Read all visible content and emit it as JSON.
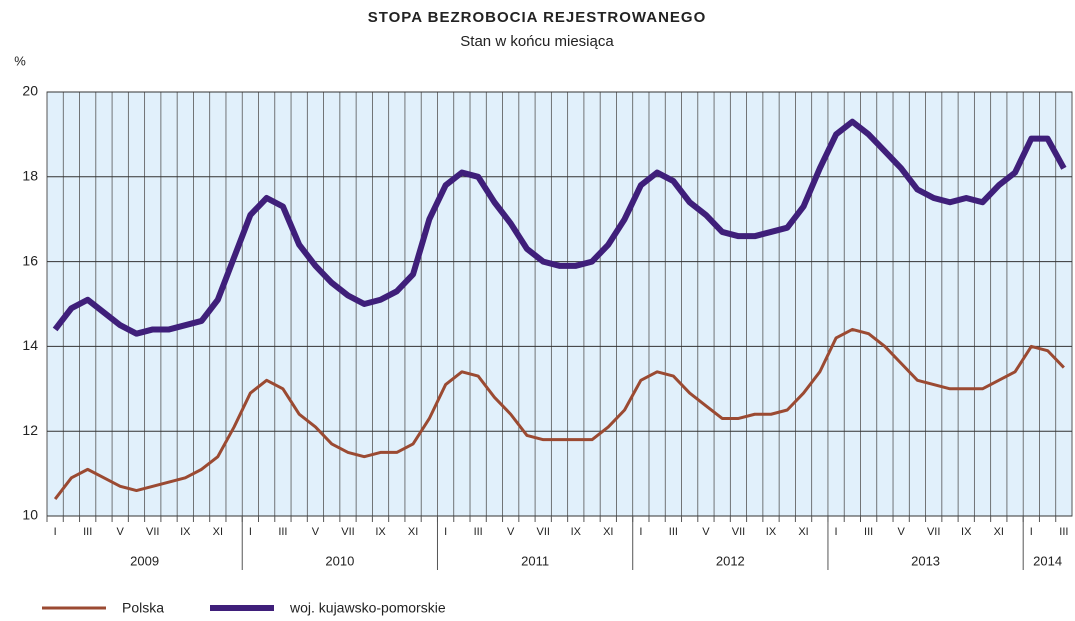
{
  "chart_data": {
    "type": "line",
    "title": "STOPA BEZROBOCIA REJESTROWANEGO",
    "subtitle": "Stan w końcu miesiąca",
    "y_label": "%",
    "categories": [
      "I",
      null,
      "III",
      null,
      "V",
      null,
      "VII",
      null,
      "IX",
      null,
      "XI",
      null,
      "I",
      null,
      "III",
      null,
      "V",
      null,
      "VII",
      null,
      "IX",
      null,
      "XI",
      null,
      "I",
      null,
      "III",
      null,
      "V",
      null,
      "VII",
      null,
      "IX",
      null,
      "XI",
      null,
      "I",
      null,
      "III",
      null,
      "V",
      null,
      "VII",
      null,
      "IX",
      null,
      "XI",
      null,
      "I",
      null,
      "III",
      null,
      "V",
      null,
      "VII",
      null,
      "IX",
      null,
      "XI",
      null,
      "I",
      null,
      "III"
    ],
    "groups": [
      {
        "name": "2009",
        "size": 12
      },
      {
        "name": "2010",
        "size": 12
      },
      {
        "name": "2011",
        "size": 12
      },
      {
        "name": "2012",
        "size": 12
      },
      {
        "name": "2013",
        "size": 12
      },
      {
        "name": "2014",
        "size": 3
      }
    ],
    "series": [
      {
        "name": "Polska",
        "color": "#9b4a32",
        "width": 3,
        "values": [
          10.4,
          10.9,
          11.1,
          10.9,
          10.7,
          10.6,
          10.7,
          10.8,
          10.9,
          11.1,
          11.4,
          12.1,
          12.9,
          13.2,
          13.0,
          12.4,
          12.1,
          11.7,
          11.5,
          11.4,
          11.5,
          11.5,
          11.7,
          12.3,
          13.1,
          13.4,
          13.3,
          12.8,
          12.4,
          11.9,
          11.8,
          11.8,
          11.8,
          11.8,
          12.1,
          12.5,
          13.2,
          13.4,
          13.3,
          12.9,
          12.6,
          12.3,
          12.3,
          12.4,
          12.4,
          12.5,
          12.9,
          13.4,
          14.2,
          14.4,
          14.3,
          14.0,
          13.6,
          13.2,
          13.1,
          13.0,
          13.0,
          13.0,
          13.2,
          13.4,
          14.0,
          13.9,
          13.5
        ]
      },
      {
        "name": "woj. kujawsko-pomorskie",
        "color": "#3f1f7a",
        "width": 6,
        "values": [
          14.4,
          14.9,
          15.1,
          14.8,
          14.5,
          14.3,
          14.4,
          14.4,
          14.5,
          14.6,
          15.1,
          16.1,
          17.1,
          17.5,
          17.3,
          16.4,
          15.9,
          15.5,
          15.2,
          15.0,
          15.1,
          15.3,
          15.7,
          17.0,
          17.8,
          18.1,
          18.0,
          17.4,
          16.9,
          16.3,
          16.0,
          15.9,
          15.9,
          16.0,
          16.4,
          17.0,
          17.8,
          18.1,
          17.9,
          17.4,
          17.1,
          16.7,
          16.6,
          16.6,
          16.7,
          16.8,
          17.3,
          18.2,
          19.0,
          19.3,
          19.0,
          18.6,
          18.2,
          17.7,
          17.5,
          17.4,
          17.5,
          17.4,
          17.8,
          18.1,
          18.9,
          18.9,
          18.2
        ]
      }
    ],
    "ylim": [
      10,
      20
    ],
    "yticks": [
      10,
      12,
      14,
      16,
      18,
      20
    ],
    "grid": true,
    "legend": "bottom"
  }
}
